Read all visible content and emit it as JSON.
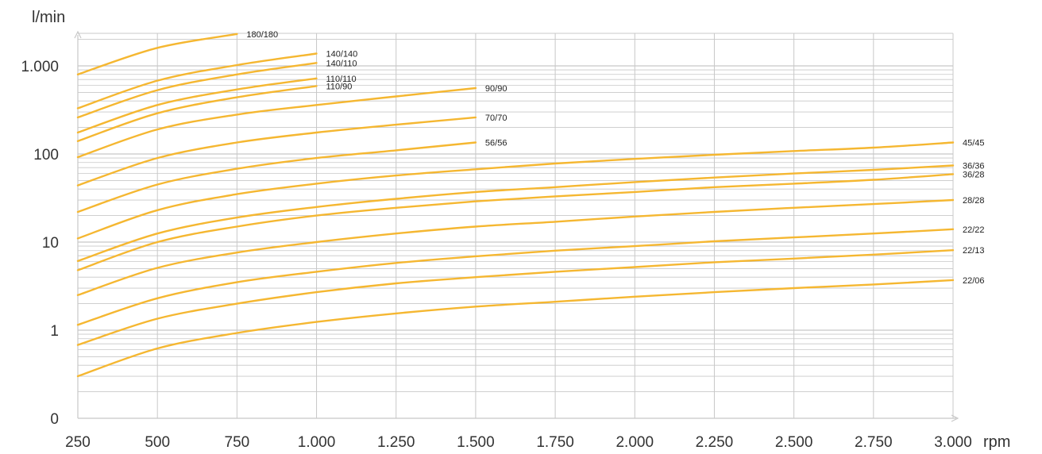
{
  "chart_data": {
    "type": "line",
    "title": "",
    "xlabel": "rpm",
    "ylabel": "l/min",
    "y_scale": "log",
    "xlim": [
      250,
      3000
    ],
    "ylim": [
      0.1,
      2000
    ],
    "grid": true,
    "x_ticks": [
      250,
      500,
      750,
      1000,
      1250,
      1500,
      1750,
      2000,
      2250,
      2500,
      2750,
      3000
    ],
    "x_tick_labels": [
      "250",
      "500",
      "750",
      "1.000",
      "1.250",
      "1.500",
      "1.750",
      "2.000",
      "2.250",
      "2.500",
      "2.750",
      "3.000"
    ],
    "y_ticks": [
      0.1,
      1,
      10,
      100,
      1000
    ],
    "y_tick_labels": [
      "0",
      "1",
      "10",
      "100",
      "1.000"
    ],
    "series_color": "#f5b731",
    "grid_color": "#c8c8c8",
    "axis_color": "#c8c8c8",
    "series": [
      {
        "name": "180/180",
        "x": [
          250,
          500,
          750
        ],
        "y": [
          800,
          1600,
          2300
        ]
      },
      {
        "name": "140/140",
        "x": [
          250,
          500,
          750,
          1000
        ],
        "y": [
          330,
          680,
          1020,
          1380
        ]
      },
      {
        "name": "140/110",
        "x": [
          250,
          500,
          750,
          1000
        ],
        "y": [
          260,
          530,
          800,
          1080
        ]
      },
      {
        "name": "110/110",
        "x": [
          250,
          500,
          750,
          1000
        ],
        "y": [
          175,
          360,
          540,
          720
        ]
      },
      {
        "name": "110/90",
        "x": [
          250,
          500,
          750,
          1000
        ],
        "y": [
          140,
          290,
          440,
          590
        ]
      },
      {
        "name": "90/90",
        "x": [
          250,
          500,
          750,
          1000,
          1250,
          1500
        ],
        "y": [
          92,
          190,
          280,
          360,
          450,
          560
        ]
      },
      {
        "name": "70/70",
        "x": [
          250,
          500,
          750,
          1000,
          1250,
          1500
        ],
        "y": [
          44,
          90,
          135,
          175,
          215,
          260
        ]
      },
      {
        "name": "56/56",
        "x": [
          250,
          500,
          750,
          1000,
          1250,
          1500
        ],
        "y": [
          22,
          45,
          68,
          90,
          110,
          135
        ]
      },
      {
        "name": "45/45",
        "x": [
          250,
          500,
          750,
          1000,
          1250,
          1500,
          1750,
          2000,
          2250,
          2500,
          2750,
          3000
        ],
        "y": [
          11,
          23,
          35,
          46,
          57,
          67,
          78,
          88,
          98,
          108,
          118,
          135
        ]
      },
      {
        "name": "36/36",
        "x": [
          250,
          500,
          750,
          1000,
          1250,
          1500,
          1750,
          2000,
          2250,
          2500,
          2750,
          3000
        ],
        "y": [
          6.1,
          12.5,
          19,
          25,
          31,
          37,
          42,
          48,
          54,
          60,
          66,
          74
        ]
      },
      {
        "name": "36/28",
        "x": [
          250,
          500,
          750,
          1000,
          1250,
          1500,
          1750,
          2000,
          2250,
          2500,
          2750,
          3000
        ],
        "y": [
          4.8,
          10,
          15,
          20,
          24.5,
          29,
          33,
          37,
          42,
          46,
          51,
          59
        ]
      },
      {
        "name": "28/28",
        "x": [
          250,
          500,
          750,
          1000,
          1250,
          1500,
          1750,
          2000,
          2250,
          2500,
          2750,
          3000
        ],
        "y": [
          2.5,
          5.1,
          7.6,
          10,
          12.5,
          15,
          17,
          19.5,
          22,
          24.5,
          27,
          30
        ]
      },
      {
        "name": "22/22",
        "x": [
          250,
          500,
          750,
          1000,
          1250,
          1500,
          1750,
          2000,
          2250,
          2500,
          2750,
          3000
        ],
        "y": [
          1.15,
          2.3,
          3.5,
          4.6,
          5.8,
          6.9,
          8,
          9,
          10.2,
          11.3,
          12.5,
          14
        ]
      },
      {
        "name": "22/13",
        "x": [
          250,
          500,
          750,
          1000,
          1250,
          1500,
          1750,
          2000,
          2250,
          2500,
          2750,
          3000
        ],
        "y": [
          0.68,
          1.35,
          2.0,
          2.7,
          3.4,
          4.0,
          4.6,
          5.2,
          5.9,
          6.5,
          7.2,
          8.1
        ]
      },
      {
        "name": "22/06",
        "x": [
          250,
          500,
          750,
          1000,
          1250,
          1500,
          1750,
          2000,
          2250,
          2500,
          2750,
          3000
        ],
        "y": [
          0.3,
          0.62,
          0.93,
          1.24,
          1.55,
          1.85,
          2.1,
          2.4,
          2.7,
          3.0,
          3.3,
          3.7
        ]
      }
    ]
  }
}
